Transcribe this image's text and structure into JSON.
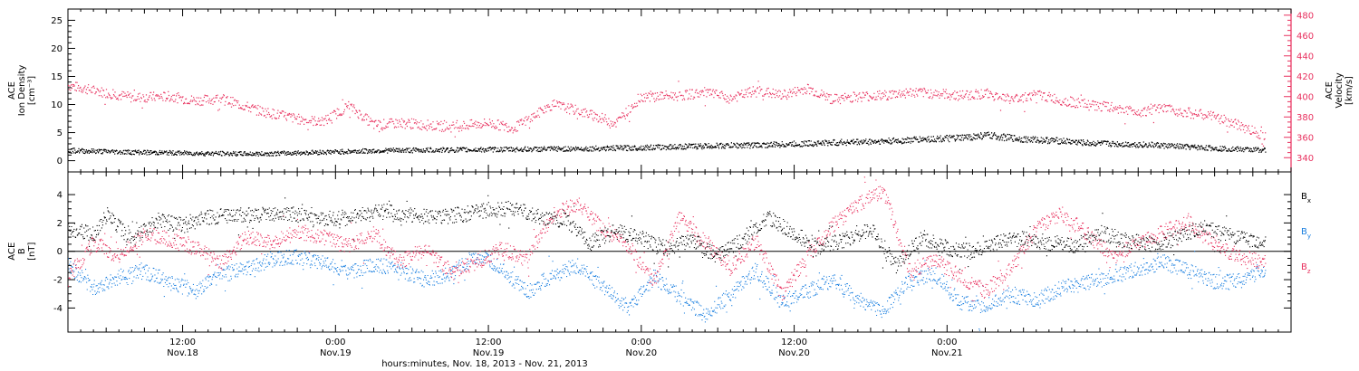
{
  "colors": {
    "axis": "#000000",
    "velocity": "#e8305e",
    "density": "#000000",
    "bx": "#000000",
    "by": "#1a7fe0",
    "bz": "#e8305e"
  },
  "chart_data": [
    {
      "type": "scatter",
      "ylabel": [
        "ACE",
        "Ion Density",
        "[cm⁻³]"
      ],
      "y2label": [
        "ACE",
        "Velocity",
        "[km/s]"
      ],
      "ylim": [
        -2,
        27
      ],
      "yticks": [
        0,
        5,
        10,
        15,
        20,
        25
      ],
      "y2lim": [
        326,
        486
      ],
      "y2ticks": [
        340,
        360,
        380,
        400,
        420,
        440,
        460,
        480
      ],
      "series": [
        {
          "axis": "left",
          "points": [
            [
              0,
              1.8
            ],
            [
              5,
              1.5
            ],
            [
              10,
              1.3
            ],
            [
              15,
              1.2
            ],
            [
              20,
              1.5
            ],
            [
              25,
              1.8
            ],
            [
              30,
              1.9
            ],
            [
              35,
              2.0
            ],
            [
              40,
              2.1
            ],
            [
              45,
              2.3
            ],
            [
              50,
              2.6
            ],
            [
              55,
              2.8
            ],
            [
              60,
              3.2
            ],
            [
              65,
              3.5
            ],
            [
              67,
              3.8
            ],
            [
              70,
              4.0
            ],
            [
              72,
              4.5
            ],
            [
              75,
              3.8
            ],
            [
              78,
              3.5
            ],
            [
              80,
              3.1
            ],
            [
              85,
              2.8
            ],
            [
              88,
              2.4
            ],
            [
              90,
              2.2
            ],
            [
              92,
              2.0
            ],
            [
              94,
              1.9
            ]
          ]
        },
        {
          "axis": "right",
          "points": [
            [
              0,
              411
            ],
            [
              2,
              406
            ],
            [
              5,
              399
            ],
            [
              8,
              400
            ],
            [
              10,
              396
            ],
            [
              12,
              398
            ],
            [
              15,
              386
            ],
            [
              18,
              378
            ],
            [
              20,
              375
            ],
            [
              22,
              391
            ],
            [
              24,
              372
            ],
            [
              26,
              374
            ],
            [
              28,
              372
            ],
            [
              30,
              370
            ],
            [
              33,
              374
            ],
            [
              35,
              369
            ],
            [
              38,
              392
            ],
            [
              40,
              386
            ],
            [
              43,
              374
            ],
            [
              45,
              400
            ],
            [
              48,
              401
            ],
            [
              50,
              404
            ],
            [
              52,
              398
            ],
            [
              54,
              406
            ],
            [
              56,
              401
            ],
            [
              58,
              408
            ],
            [
              60,
              397
            ],
            [
              62,
              400
            ],
            [
              64,
              401
            ],
            [
              66,
              404
            ],
            [
              68,
              403
            ],
            [
              70,
              401
            ],
            [
              72,
              403
            ],
            [
              74,
              397
            ],
            [
              76,
              402
            ],
            [
              78,
              396
            ],
            [
              80,
              392
            ],
            [
              82,
              389
            ],
            [
              84,
              385
            ],
            [
              86,
              388
            ],
            [
              88,
              384
            ],
            [
              90,
              380
            ],
            [
              92,
              371
            ],
            [
              94,
              361
            ]
          ]
        }
      ]
    },
    {
      "type": "scatter",
      "ylabel": [
        "ACE",
        "B",
        "[nT]"
      ],
      "ylim": [
        -5.7,
        5.6
      ],
      "yticks": [
        -4,
        -2,
        0,
        2,
        4
      ],
      "series": [
        {
          "name": "Bx",
          "label_main": "B",
          "label_sub": "x",
          "color_key": "bx",
          "points": [
            [
              0,
              1.6
            ],
            [
              2,
              1.2
            ],
            [
              3,
              2.6
            ],
            [
              5,
              0.8
            ],
            [
              7,
              2.2
            ],
            [
              9,
              1.8
            ],
            [
              11,
              2.4
            ],
            [
              13,
              2.5
            ],
            [
              15,
              2.6
            ],
            [
              17,
              2.7
            ],
            [
              19,
              2.4
            ],
            [
              21,
              2.3
            ],
            [
              23,
              2.6
            ],
            [
              25,
              2.8
            ],
            [
              27,
              2.5
            ],
            [
              29,
              2.4
            ],
            [
              31,
              2.6
            ],
            [
              33,
              2.9
            ],
            [
              35,
              3.0
            ],
            [
              37,
              2.4
            ],
            [
              39,
              2.2
            ],
            [
              41,
              0.6
            ],
            [
              43,
              1.4
            ],
            [
              45,
              0.9
            ],
            [
              47,
              0.2
            ],
            [
              49,
              0.8
            ],
            [
              51,
              -0.4
            ],
            [
              53,
              0.9
            ],
            [
              55,
              2.4
            ],
            [
              57,
              1.2
            ],
            [
              59,
              0.3
            ],
            [
              61,
              0.8
            ],
            [
              63,
              1.6
            ],
            [
              65,
              -1.0
            ],
            [
              67,
              1.0
            ],
            [
              69,
              0.2
            ],
            [
              71,
              0.0
            ],
            [
              73,
              0.7
            ],
            [
              75,
              0.9
            ],
            [
              77,
              0.6
            ],
            [
              79,
              0.4
            ],
            [
              81,
              1.3
            ],
            [
              83,
              0.8
            ],
            [
              85,
              0.5
            ],
            [
              87,
              0.9
            ],
            [
              89,
              1.8
            ],
            [
              91,
              1.1
            ],
            [
              93,
              0.8
            ],
            [
              94,
              0.6
            ]
          ]
        },
        {
          "name": "By",
          "label_main": "B",
          "label_sub": "y",
          "color_key": "by",
          "points": [
            [
              0,
              -1.0
            ],
            [
              2,
              -2.6
            ],
            [
              4,
              -1.8
            ],
            [
              6,
              -1.4
            ],
            [
              8,
              -2.2
            ],
            [
              10,
              -2.8
            ],
            [
              12,
              -1.7
            ],
            [
              14,
              -1.2
            ],
            [
              16,
              -0.6
            ],
            [
              18,
              -0.4
            ],
            [
              20,
              -0.8
            ],
            [
              22,
              -1.6
            ],
            [
              24,
              -0.9
            ],
            [
              26,
              -1.3
            ],
            [
              28,
              -2.0
            ],
            [
              30,
              -1.6
            ],
            [
              32,
              -0.3
            ],
            [
              34,
              -1.2
            ],
            [
              36,
              -2.9
            ],
            [
              38,
              -1.7
            ],
            [
              40,
              -1.0
            ],
            [
              42,
              -2.6
            ],
            [
              44,
              -4.0
            ],
            [
              46,
              -1.8
            ],
            [
              48,
              -3.2
            ],
            [
              50,
              -4.5
            ],
            [
              52,
              -3.0
            ],
            [
              54,
              -1.4
            ],
            [
              56,
              -3.6
            ],
            [
              58,
              -2.8
            ],
            [
              60,
              -2.0
            ],
            [
              62,
              -3.4
            ],
            [
              64,
              -4.2
            ],
            [
              66,
              -2.0
            ],
            [
              68,
              -1.6
            ],
            [
              70,
              -3.6
            ],
            [
              72,
              -3.9
            ],
            [
              74,
              -3.1
            ],
            [
              76,
              -3.4
            ],
            [
              78,
              -2.6
            ],
            [
              80,
              -2.2
            ],
            [
              82,
              -1.8
            ],
            [
              84,
              -1.2
            ],
            [
              86,
              -0.8
            ],
            [
              88,
              -1.4
            ],
            [
              90,
              -2.2
            ],
            [
              92,
              -2.1
            ],
            [
              94,
              -1.2
            ]
          ]
        },
        {
          "name": "Bz",
          "label_main": "B",
          "label_sub": "z",
          "color_key": "bz",
          "points": [
            [
              0,
              -1.8
            ],
            [
              2,
              0.6
            ],
            [
              4,
              -0.4
            ],
            [
              6,
              1.2
            ],
            [
              8,
              0.8
            ],
            [
              10,
              0.2
            ],
            [
              12,
              -0.8
            ],
            [
              14,
              1.0
            ],
            [
              16,
              0.6
            ],
            [
              18,
              1.4
            ],
            [
              20,
              1.0
            ],
            [
              22,
              0.4
            ],
            [
              24,
              1.2
            ],
            [
              26,
              -0.8
            ],
            [
              28,
              0.2
            ],
            [
              30,
              -1.4
            ],
            [
              32,
              -0.8
            ],
            [
              34,
              0.2
            ],
            [
              36,
              -0.6
            ],
            [
              38,
              2.6
            ],
            [
              40,
              3.4
            ],
            [
              42,
              1.6
            ],
            [
              44,
              0.4
            ],
            [
              46,
              -2.2
            ],
            [
              48,
              2.4
            ],
            [
              50,
              0.6
            ],
            [
              52,
              -1.2
            ],
            [
              54,
              0.8
            ],
            [
              56,
              -3.0
            ],
            [
              58,
              -0.4
            ],
            [
              60,
              1.8
            ],
            [
              62,
              3.3
            ],
            [
              64,
              4.3
            ],
            [
              66,
              -1.4
            ],
            [
              68,
              -0.6
            ],
            [
              70,
              -1.8
            ],
            [
              72,
              -2.8
            ],
            [
              74,
              -1.2
            ],
            [
              76,
              1.6
            ],
            [
              78,
              2.6
            ],
            [
              80,
              1.2
            ],
            [
              82,
              -0.4
            ],
            [
              84,
              0.6
            ],
            [
              86,
              1.4
            ],
            [
              88,
              2.0
            ],
            [
              90,
              0.4
            ],
            [
              92,
              -0.4
            ],
            [
              94,
              -0.8
            ]
          ]
        }
      ]
    }
  ],
  "xaxis": {
    "time_label": "hours:minutes, Nov. 18, 2013 - Nov. 21, 2013",
    "xlim": [
      0,
      96
    ],
    "major_ticks": [
      {
        "x": 9,
        "time": "12:00",
        "date": "Nov.18"
      },
      {
        "x": 21,
        "time": "0:00",
        "date": "Nov.19"
      },
      {
        "x": 33,
        "time": "12:00",
        "date": "Nov.19"
      },
      {
        "x": 45,
        "time": "0:00",
        "date": "Nov.20"
      },
      {
        "x": 57,
        "time": "12:00",
        "date": "Nov.20"
      },
      {
        "x": 69,
        "time": "0:00",
        "date": "Nov.21"
      }
    ]
  }
}
